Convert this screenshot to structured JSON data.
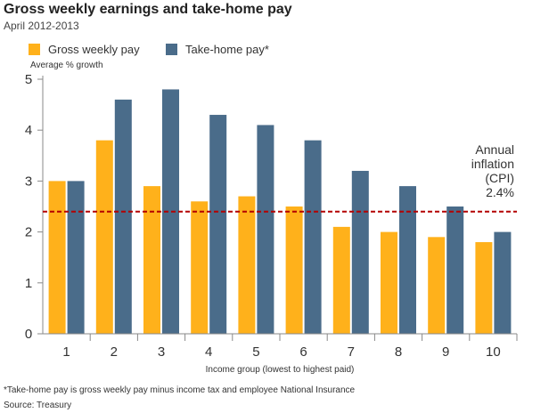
{
  "header": {
    "title": "Gross weekly earnings and take-home pay",
    "subtitle": "April 2012-2013"
  },
  "footer": {
    "footnote": "*Take-home pay is gross weekly pay minus income tax and employee National Insurance",
    "source": "Source: Treasury"
  },
  "colors": {
    "gross": "#FFB11B",
    "takehome": "#4A6C8A",
    "inflation_line": "#B40000",
    "axis": "#888888"
  },
  "chart_data": {
    "type": "bar",
    "title": "Gross weekly earnings and take-home pay",
    "subtitle": "April 2012-2013",
    "categories": [
      "1",
      "2",
      "3",
      "4",
      "5",
      "6",
      "7",
      "8",
      "9",
      "10"
    ],
    "series": [
      {
        "name": "Gross weekly pay",
        "values": [
          3.0,
          3.8,
          2.9,
          2.6,
          2.7,
          2.5,
          2.1,
          2.0,
          1.9,
          1.8
        ]
      },
      {
        "name": "Take-home pay*",
        "values": [
          3.0,
          4.6,
          4.8,
          4.3,
          4.1,
          3.8,
          3.2,
          2.9,
          2.5,
          2.0
        ]
      }
    ],
    "xlabel": "Income group (lowest to highest paid)",
    "ylabel": "Average % growth",
    "ylim": [
      0,
      5
    ],
    "yticks": [
      0,
      1,
      2,
      3,
      4,
      5
    ],
    "reference_line": {
      "value": 2.4,
      "label_lines": [
        "Annual",
        "inflation",
        "(CPI)",
        "2.4%"
      ]
    },
    "legend_position": "top-left",
    "grid": false
  }
}
